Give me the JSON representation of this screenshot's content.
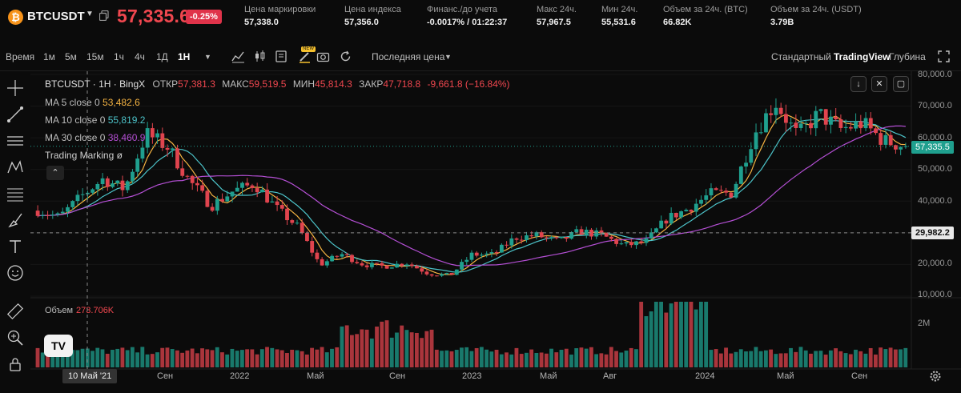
{
  "header": {
    "coin_glyph": "₿",
    "symbol": "BTCUSDT",
    "last_price": "57,335.6",
    "change_pct": "-0.25%",
    "stats": [
      {
        "label": "Цена маркировки",
        "value": "57,338.0"
      },
      {
        "label": "Цена индекса",
        "value": "57,356.0"
      },
      {
        "label": "Финанс./до учета",
        "value": "-0.0017% / 01:22:37"
      },
      {
        "label": "Макс 24ч.",
        "value": "57,967.5"
      },
      {
        "label": "Мин 24ч.",
        "value": "55,531.6"
      },
      {
        "label": "Объем за 24ч. (BTC)",
        "value": "66.82K"
      },
      {
        "label": "Объем за 24ч. (USDT)",
        "value": "3.79B"
      }
    ]
  },
  "toolbar": {
    "time_label": "Время",
    "intervals": [
      "1м",
      "5м",
      "15м",
      "1ч",
      "4ч",
      "1Д",
      "1H"
    ],
    "active_interval": "1H",
    "new_badge": "NEW",
    "price_type": "Последняя цена",
    "views": [
      "Стандартный",
      "TradingView",
      "Глубина"
    ],
    "active_view": "TradingView"
  },
  "legend": {
    "title": "BTCUSDT · 1H · BingX",
    "open_label": "ОТКР",
    "open": "57,381.3",
    "high_label": "МАКС",
    "high": "59,519.5",
    "low_label": "МИН",
    "low": "45,814.3",
    "close_label": "ЗАКР",
    "close": "47,718.8",
    "change": "-9,661.8 (−16.84%)",
    "ma": [
      {
        "label": "MA 5 close 0",
        "value": "53,482.6",
        "color": "#f5b342"
      },
      {
        "label": "MA 10 close 0",
        "value": "55,819.2",
        "color": "#4cc3c9"
      },
      {
        "label": "MA 30 close 0",
        "value": "38,460.9",
        "color": "#b44fd4"
      }
    ],
    "marking": "Trading Marking  ø",
    "volume_label": "Объем",
    "volume_value": "273.706K"
  },
  "price_axis": {
    "ticks": [
      "80,000.0",
      "70,000.0",
      "60,000.0",
      "50,000.0",
      "40,000.0",
      "30,000.0",
      "20,000.0",
      "10,000.0"
    ],
    "current_price": "57,335.5",
    "ref_price": "29,982.2",
    "volume_tick": "2M"
  },
  "time_axis": {
    "cursor_label": "10 Май '21",
    "ticks": [
      "Сен",
      "2022",
      "Май",
      "Сен",
      "2023",
      "Май",
      "Авг",
      "2024",
      "Май",
      "Сен"
    ]
  },
  "colors": {
    "up": "#1f9f8e",
    "down": "#e0444e",
    "ma5": "#f5b342",
    "ma10": "#4cc3c9",
    "ma30": "#b44fd4",
    "accent": "#f0474f"
  },
  "chart_data": {
    "type": "candlestick",
    "x_start": "2021-05",
    "x_end": "2024-09",
    "ylim": [
      10000,
      80000
    ],
    "trend_months": [
      {
        "month": "2021-05",
        "close": 37000
      },
      {
        "month": "2021-06",
        "close": 35000
      },
      {
        "month": "2021-07",
        "close": 41500
      },
      {
        "month": "2021-08",
        "close": 47000
      },
      {
        "month": "2021-09",
        "close": 43800
      },
      {
        "month": "2021-10",
        "close": 61300
      },
      {
        "month": "2021-11",
        "close": 57000
      },
      {
        "month": "2021-12",
        "close": 46300
      },
      {
        "month": "2022-01",
        "close": 38500
      },
      {
        "month": "2022-02",
        "close": 43200
      },
      {
        "month": "2022-03",
        "close": 45500
      },
      {
        "month": "2022-04",
        "close": 37700
      },
      {
        "month": "2022-05",
        "close": 31800
      },
      {
        "month": "2022-06",
        "close": 19900
      },
      {
        "month": "2022-07",
        "close": 23300
      },
      {
        "month": "2022-08",
        "close": 20000
      },
      {
        "month": "2022-09",
        "close": 19400
      },
      {
        "month": "2022-10",
        "close": 20500
      },
      {
        "month": "2022-11",
        "close": 17200
      },
      {
        "month": "2022-12",
        "close": 16500
      },
      {
        "month": "2023-01",
        "close": 23100
      },
      {
        "month": "2023-02",
        "close": 23100
      },
      {
        "month": "2023-03",
        "close": 28500
      },
      {
        "month": "2023-04",
        "close": 29200
      },
      {
        "month": "2023-05",
        "close": 27200
      },
      {
        "month": "2023-06",
        "close": 30500
      },
      {
        "month": "2023-07",
        "close": 29200
      },
      {
        "month": "2023-08",
        "close": 26000
      },
      {
        "month": "2023-09",
        "close": 27000
      },
      {
        "month": "2023-10",
        "close": 34500
      },
      {
        "month": "2023-11",
        "close": 37700
      },
      {
        "month": "2023-12",
        "close": 42300
      },
      {
        "month": "2024-01",
        "close": 42600
      },
      {
        "month": "2024-02",
        "close": 61200
      },
      {
        "month": "2024-03",
        "close": 71300
      },
      {
        "month": "2024-04",
        "close": 60700
      },
      {
        "month": "2024-05",
        "close": 67500
      },
      {
        "month": "2024-06",
        "close": 62700
      },
      {
        "month": "2024-07",
        "close": 64600
      },
      {
        "month": "2024-08",
        "close": 59000
      },
      {
        "month": "2024-09",
        "close": 57335
      }
    ]
  }
}
